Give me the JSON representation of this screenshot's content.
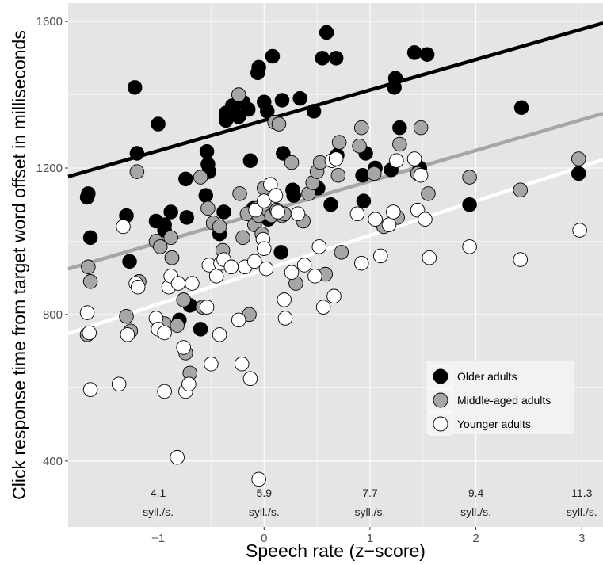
{
  "chart_data": {
    "type": "scatter",
    "xlabel": "Speech rate (z−score)",
    "ylabel": "Click response time from target word offset in milliseconds",
    "xlim": [
      -1.85,
      3.2
    ],
    "ylim": [
      220,
      1650
    ],
    "x_ticks": [
      -1,
      0,
      1,
      2,
      3
    ],
    "x_tick_labels": [
      "−1",
      "0",
      "1",
      "2",
      "3"
    ],
    "y_ticks": [
      400,
      800,
      1200,
      1600
    ],
    "y_tick_labels": [
      "400",
      "800",
      "1200",
      "1600"
    ],
    "grid": true,
    "legend_position": "bottom-right",
    "annotations": [
      {
        "x": -1,
        "line1": "4.1",
        "line2": "syll./s."
      },
      {
        "x": 0,
        "line1": "5.9",
        "line2": "syll./s."
      },
      {
        "x": 1,
        "line1": "7.7",
        "line2": "syll./s."
      },
      {
        "x": 2,
        "line1": "9.4",
        "line2": "syll./s."
      },
      {
        "x": 3,
        "line1": "11.3",
        "line2": "syll./s."
      }
    ],
    "series": [
      {
        "name": "Older adults",
        "color": "#000000",
        "trend": {
          "intercept": 1330,
          "slope": 83
        },
        "x": [
          -1.67,
          -1.66,
          -1.64,
          -1.3,
          -1.27,
          -1.22,
          -1.2,
          -1.02,
          -1.0,
          -0.94,
          -0.94,
          -0.88,
          -0.87,
          -0.8,
          -0.74,
          -0.73,
          -0.7,
          -0.6,
          -0.55,
          -0.54,
          -0.53,
          -0.52,
          -0.42,
          -0.38,
          -0.36,
          -0.36,
          -0.3,
          -0.24,
          -0.2,
          -0.15,
          -0.13,
          -0.1,
          -0.1,
          -0.06,
          -0.05,
          0.0,
          0.03,
          0.04,
          0.08,
          0.16,
          0.17,
          0.18,
          0.27,
          0.28,
          0.34,
          0.47,
          0.51,
          0.55,
          0.59,
          0.63,
          0.68,
          0.69,
          0.93,
          0.94,
          0.96,
          1.05,
          1.2,
          1.23,
          1.24,
          1.28,
          1.42,
          1.47,
          1.54,
          1.94,
          2.43,
          2.97
        ],
        "y": [
          1120,
          1130,
          1010,
          1070,
          945,
          1420,
          1240,
          1055,
          1320,
          1030,
          1045,
          1080,
          955,
          785,
          1170,
          1065,
          825,
          760,
          1125,
          1245,
          1210,
          1190,
          1020,
          1080,
          1350,
          1330,
          1370,
          1340,
          1380,
          1360,
          1220,
          1090,
          1080,
          1460,
          1475,
          1380,
          1355,
          1060,
          1505,
          970,
          1385,
          1240,
          1140,
          1125,
          1390,
          1355,
          1145,
          1500,
          1570,
          1100,
          1500,
          1235,
          1180,
          1110,
          1240,
          1200,
          1195,
          1420,
          1445,
          1310,
          1515,
          1200,
          1510,
          1100,
          1365,
          1185
        ]
      },
      {
        "name": "Middle-aged adults",
        "color": "#a6a6a6",
        "trend": {
          "intercept": 1080,
          "slope": 84
        },
        "x": [
          -1.67,
          -1.66,
          -1.64,
          -1.3,
          -1.26,
          -1.2,
          -1.18,
          -1.02,
          -0.98,
          -0.94,
          -0.88,
          -0.87,
          -0.82,
          -0.76,
          -0.74,
          -0.7,
          -0.6,
          -0.58,
          -0.53,
          -0.48,
          -0.42,
          -0.39,
          -0.24,
          -0.23,
          -0.2,
          -0.16,
          -0.14,
          -0.09,
          -0.07,
          -0.05,
          -0.02,
          0.0,
          0.04,
          0.07,
          0.1,
          0.12,
          0.14,
          0.17,
          0.19,
          0.26,
          0.3,
          0.37,
          0.42,
          0.46,
          0.5,
          0.53,
          0.58,
          0.7,
          0.71,
          0.73,
          0.9,
          0.92,
          1.04,
          1.13,
          1.26,
          1.28,
          1.45,
          1.48,
          1.55,
          1.94,
          2.42,
          2.97
        ],
        "y": [
          745,
          930,
          890,
          795,
          755,
          1190,
          890,
          1000,
          985,
          775,
          1010,
          955,
          770,
          840,
          695,
          640,
          1175,
          820,
          1090,
          1050,
          1040,
          975,
          1400,
          1130,
          1010,
          1075,
          800,
          1045,
          1090,
          1070,
          1020,
          1145,
          1085,
          1070,
          1325,
          1085,
          1320,
          1070,
          1075,
          1215,
          885,
          1055,
          1130,
          1160,
          1190,
          1215,
          910,
          1180,
          1270,
          970,
          1260,
          1310,
          1185,
          1040,
          1065,
          1265,
          1185,
          1310,
          1130,
          1175,
          1140,
          1225
        ]
      },
      {
        "name": "Younger adults",
        "color": "#ffffff",
        "trend": {
          "intercept": 922,
          "slope": 94
        },
        "x": [
          -1.67,
          -1.65,
          -1.64,
          -1.37,
          -1.33,
          -1.29,
          -1.21,
          -1.19,
          -1.02,
          -1.0,
          -0.94,
          -0.94,
          -0.9,
          -0.88,
          -0.82,
          -0.81,
          -0.76,
          -0.74,
          -0.71,
          -0.68,
          -0.54,
          -0.52,
          -0.5,
          -0.45,
          -0.42,
          -0.41,
          -0.38,
          -0.31,
          -0.24,
          -0.21,
          -0.18,
          -0.13,
          -0.09,
          -0.08,
          -0.05,
          -0.01,
          0.0,
          0.0,
          0.02,
          0.06,
          0.11,
          0.13,
          0.19,
          0.2,
          0.26,
          0.32,
          0.38,
          0.48,
          0.52,
          0.56,
          0.64,
          0.66,
          0.68,
          0.88,
          0.92,
          1.05,
          1.1,
          1.18,
          1.22,
          1.25,
          1.42,
          1.45,
          1.48,
          1.52,
          1.56,
          1.94,
          2.42,
          2.98
        ],
        "y": [
          805,
          750,
          595,
          610,
          1040,
          745,
          885,
          875,
          790,
          760,
          590,
          750,
          875,
          905,
          410,
          885,
          710,
          590,
          610,
          885,
          820,
          935,
          665,
          905,
          745,
          940,
          950,
          930,
          785,
          665,
          930,
          625,
          945,
          1085,
          350,
          1005,
          980,
          1110,
          925,
          1155,
          1125,
          1080,
          840,
          790,
          915,
          1075,
          935,
          905,
          985,
          820,
          1220,
          850,
          1225,
          1075,
          940,
          1060,
          960,
          1045,
          1080,
          1220,
          1225,
          1085,
          1180,
          1060,
          955,
          985,
          950,
          1030
        ]
      }
    ]
  }
}
